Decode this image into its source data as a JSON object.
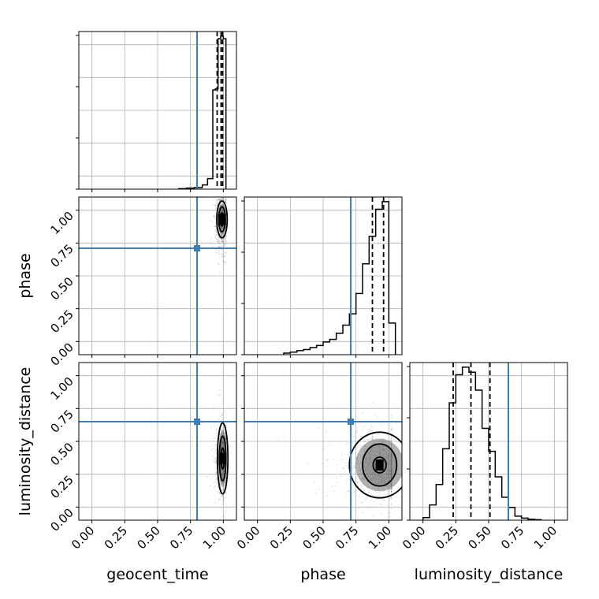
{
  "style": {
    "truth_color": "#3f7db5",
    "contour_color": "#000000",
    "grid_color": "#b0b0b0",
    "scatter_color": "#7a7a7a"
  },
  "chart_data": {
    "type": "corner",
    "parameters": [
      "geocent_time",
      "phase",
      "luminosity_distance"
    ],
    "range": [
      -0.1,
      1.1
    ],
    "ticks": [
      0.0,
      0.25,
      0.5,
      0.75,
      1.0
    ],
    "tick_labels": [
      "0.00",
      "0.25",
      "0.50",
      "0.75",
      "1.00"
    ],
    "truths": {
      "geocent_time": 0.8,
      "phase": 0.71,
      "luminosity_distance": 0.65
    },
    "grid": true,
    "histograms": [
      {
        "parameter": "geocent_time",
        "bin_edges": [
          0.66,
          0.72,
          0.78,
          0.84,
          0.88,
          0.92,
          0.94,
          0.96,
          0.98,
          1.0,
          1.02
        ],
        "counts": [
          1,
          2,
          3,
          8,
          20,
          188,
          190,
          285,
          290,
          285
        ],
        "quantiles": [
          0.953,
          0.983,
          0.995
        ]
      },
      {
        "parameter": "phase",
        "bin_edges": [
          0.2,
          0.25,
          0.3,
          0.35,
          0.4,
          0.45,
          0.5,
          0.55,
          0.6,
          0.65,
          0.7,
          0.75,
          0.8,
          0.85,
          0.9,
          0.95,
          1.0,
          1.05
        ],
        "counts": [
          3,
          5,
          8,
          10,
          14,
          18,
          25,
          30,
          42,
          58,
          80,
          120,
          178,
          232,
          285,
          300,
          62
        ],
        "quantiles": [
          0.71,
          0.875,
          0.96
        ]
      },
      {
        "parameter": "luminosity_distance",
        "bin_edges": [
          0.0,
          0.05,
          0.1,
          0.15,
          0.2,
          0.25,
          0.3,
          0.35,
          0.4,
          0.45,
          0.5,
          0.55,
          0.6,
          0.65,
          0.7,
          0.75,
          0.8,
          0.85,
          0.9
        ],
        "counts": [
          5,
          30,
          70,
          140,
          230,
          285,
          300,
          290,
          255,
          180,
          135,
          85,
          45,
          25,
          8,
          4,
          2,
          1
        ],
        "quantiles": [
          0.23,
          0.365,
          0.51
        ]
      }
    ],
    "pairs": [
      {
        "x_param": "geocent_time",
        "y_param": "phase",
        "center": [
          0.99,
          0.93
        ],
        "spread": [
          0.02,
          0.1
        ],
        "contours": [
          {
            "rx": 0.012,
            "ry": 0.05
          },
          {
            "rx": 0.025,
            "ry": 0.095
          },
          {
            "rx": 0.04,
            "ry": 0.14
          }
        ]
      },
      {
        "x_param": "geocent_time",
        "y_param": "luminosity_distance",
        "center": [
          0.995,
          0.37
        ],
        "spread": [
          0.02,
          0.12
        ],
        "contours": [
          {
            "rx": 0.012,
            "ry": 0.08
          },
          {
            "rx": 0.025,
            "ry": 0.17
          },
          {
            "rx": 0.04,
            "ry": 0.27
          }
        ]
      },
      {
        "x_param": "phase",
        "y_param": "luminosity_distance",
        "center": [
          0.93,
          0.32
        ],
        "spread": [
          0.12,
          0.12
        ],
        "contours": [
          {
            "rx": 0.05,
            "ry": 0.06
          },
          {
            "rx": 0.13,
            "ry": 0.16
          },
          {
            "rx": 0.23,
            "ry": 0.25
          }
        ]
      }
    ]
  }
}
